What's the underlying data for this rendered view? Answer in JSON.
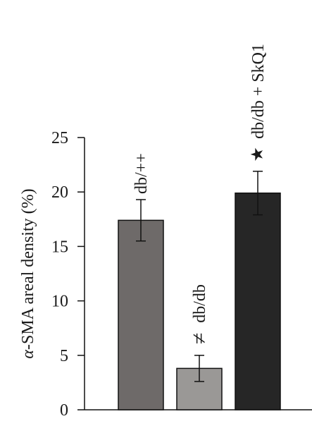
{
  "chart_data": {
    "type": "bar",
    "categories": [
      "db/++",
      "db/db",
      "db/db + SkQ1"
    ],
    "values": [
      17.4,
      3.8,
      19.9
    ],
    "errors": [
      1.9,
      1.2,
      2.0
    ],
    "bar_colors": [
      "#6e6a69",
      "#9a9896",
      "#262626"
    ],
    "significance_markers": [
      "",
      "≠",
      "★"
    ],
    "ylabel_greek": "α",
    "ylabel_rest": "-SMA areal density (%)",
    "ylim": [
      0,
      25
    ],
    "yticks": [
      "0",
      "5",
      "10",
      "15",
      "20",
      "25"
    ],
    "grid": false,
    "legend": "none"
  }
}
